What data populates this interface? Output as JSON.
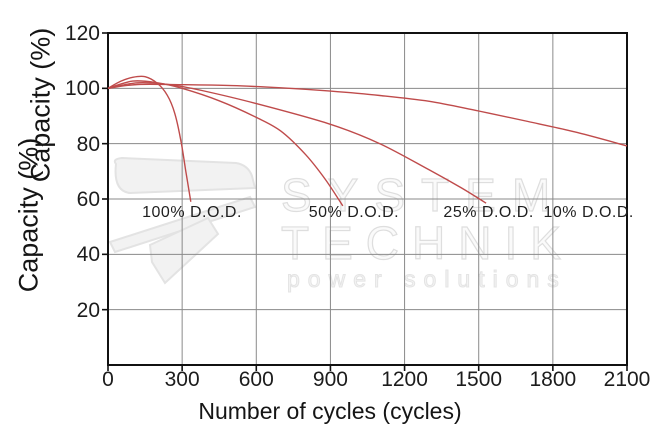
{
  "watermark": {
    "line1": "SYSTEM",
    "line2": "TECHNIK",
    "line3": "power solutions"
  },
  "colors": {
    "line": "#bf4b4b",
    "grid": "#8a8a8a",
    "axis": "#111111",
    "text": "#1c1c1c",
    "watermark_fill": "#f2f2f2",
    "watermark_stroke": "#e3e3e3"
  },
  "chart_data": {
    "type": "line",
    "title": "",
    "xlabel": "Number of cycles (cycles)",
    "ylabel": "Capacity (%)",
    "xlim": [
      0,
      2100
    ],
    "ylim": [
      0,
      120
    ],
    "xticks": [
      0,
      300,
      600,
      900,
      1200,
      1500,
      1800,
      2100
    ],
    "yticks": [
      20,
      40,
      60,
      80,
      100,
      120
    ],
    "grid": true,
    "legend_position": "none",
    "series": [
      {
        "name": "100% D.O.D.",
        "label_at": [
          340,
          55
        ],
        "points": [
          [
            0,
            100
          ],
          [
            50,
            102.5
          ],
          [
            100,
            104
          ],
          [
            150,
            104.2
          ],
          [
            200,
            101.8
          ],
          [
            240,
            97.5
          ],
          [
            270,
            91
          ],
          [
            295,
            81
          ],
          [
            315,
            70
          ],
          [
            335,
            59
          ]
        ]
      },
      {
        "name": "50% D.O.D.",
        "label_at": [
          995,
          55
        ],
        "points": [
          [
            0,
            100
          ],
          [
            100,
            102.6
          ],
          [
            200,
            102
          ],
          [
            300,
            100
          ],
          [
            450,
            95.5
          ],
          [
            600,
            89.5
          ],
          [
            700,
            84.5
          ],
          [
            800,
            76
          ],
          [
            880,
            67
          ],
          [
            950,
            57.5
          ]
        ]
      },
      {
        "name": "25% D.O.D.",
        "label_at": [
          1540,
          55
        ],
        "points": [
          [
            0,
            100
          ],
          [
            120,
            102
          ],
          [
            250,
            101.3
          ],
          [
            380,
            99.2
          ],
          [
            600,
            94.5
          ],
          [
            900,
            87
          ],
          [
            1100,
            80
          ],
          [
            1300,
            70.5
          ],
          [
            1430,
            64
          ],
          [
            1530,
            58.5
          ]
        ]
      },
      {
        "name": "10% D.O.D.",
        "label_at": [
          1945,
          55
        ],
        "points": [
          [
            0,
            100
          ],
          [
            120,
            101.4
          ],
          [
            300,
            101.3
          ],
          [
            500,
            101
          ],
          [
            700,
            100.2
          ],
          [
            900,
            99
          ],
          [
            1100,
            97.4
          ],
          [
            1300,
            95.3
          ],
          [
            1500,
            91.8
          ],
          [
            1700,
            88
          ],
          [
            1900,
            84
          ],
          [
            2100,
            79.2
          ]
        ]
      }
    ]
  }
}
